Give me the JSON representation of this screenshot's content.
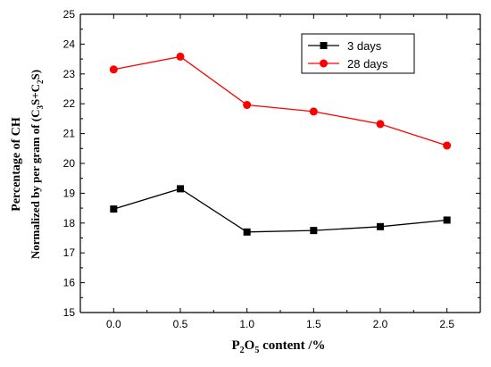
{
  "chart_data": {
    "type": "line",
    "x": [
      0.0,
      0.5,
      1.0,
      1.5,
      2.0,
      2.5
    ],
    "x_tick_labels": [
      "0.0",
      "0.5",
      "1.0",
      "1.5",
      "2.0",
      "2.5"
    ],
    "xlim": [
      -0.25,
      2.75
    ],
    "ylim": [
      15,
      25
    ],
    "y_ticks": [
      15,
      16,
      17,
      18,
      19,
      20,
      21,
      22,
      23,
      24,
      25
    ],
    "xlabel": {
      "base": "P",
      "sub1": "2",
      "mid": "O",
      "sub2": "5",
      "rest": " content /%"
    },
    "ylabel_line1": "Percentage of CH",
    "ylabel_line2": {
      "pre": "Normalized by per gram of (C",
      "sub1": "3",
      "mid": "S+C",
      "sub2": "2",
      "post": "S)"
    },
    "grid": false,
    "legend_position": "top-right",
    "series": [
      {
        "name": "3 days",
        "color": "#000000",
        "marker": "square",
        "values": [
          18.47,
          19.15,
          17.7,
          17.75,
          17.88,
          18.1
        ]
      },
      {
        "name": "28 days",
        "color": "#ff0000",
        "marker": "circle",
        "values": [
          23.15,
          23.58,
          21.96,
          21.74,
          21.32,
          20.6
        ]
      }
    ]
  }
}
